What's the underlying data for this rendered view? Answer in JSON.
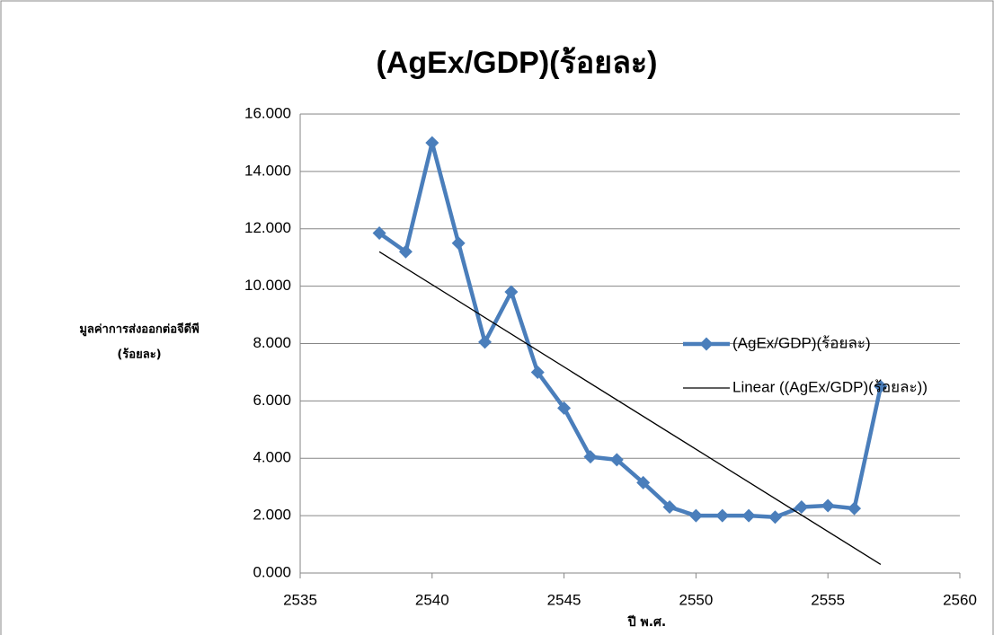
{
  "chart_data": {
    "type": "line",
    "title": "(AgEx/GDP)(ร้อยละ)",
    "x_label": "ปี พ.ศ.",
    "y_label": [
      "มูลค่าการส่งออกต่อจีดีพี",
      "(ร้อยละ)"
    ],
    "x": [
      2538,
      2539,
      2540,
      2541,
      2542,
      2543,
      2544,
      2545,
      2546,
      2547,
      2548,
      2549,
      2550,
      2551,
      2552,
      2553,
      2554,
      2555,
      2556,
      2557
    ],
    "series": [
      {
        "name": "(AgEx/GDP)(ร้อยละ)",
        "color": "#4a7ebb",
        "values": [
          11.85,
          11.2,
          15.0,
          11.5,
          8.05,
          9.8,
          7.0,
          5.75,
          4.05,
          3.95,
          3.15,
          2.3,
          2.0,
          2.0,
          2.0,
          1.95,
          2.3,
          2.35,
          2.25,
          6.5
        ]
      },
      {
        "name": "Linear ((AgEx/GDP)(ร้อยละ))",
        "color": "#000000",
        "x": [
          2538,
          2557
        ],
        "values": [
          11.2,
          0.3
        ]
      }
    ],
    "xlim": [
      2535,
      2560
    ],
    "xticks": [
      2535,
      2540,
      2545,
      2550,
      2555,
      2560
    ],
    "ylim": [
      0,
      16
    ],
    "yticks": [
      {
        "value": 0,
        "label": "0.000"
      },
      {
        "value": 2,
        "label": "2.000"
      },
      {
        "value": 4,
        "label": "4.000"
      },
      {
        "value": 6,
        "label": "6.000"
      },
      {
        "value": 8,
        "label": "8.000"
      },
      {
        "value": 10,
        "label": "10.000"
      },
      {
        "value": 12,
        "label": "12.000"
      },
      {
        "value": 14,
        "label": "14.000"
      },
      {
        "value": 16,
        "label": "16.000"
      }
    ],
    "grid": true,
    "legend": "right"
  }
}
